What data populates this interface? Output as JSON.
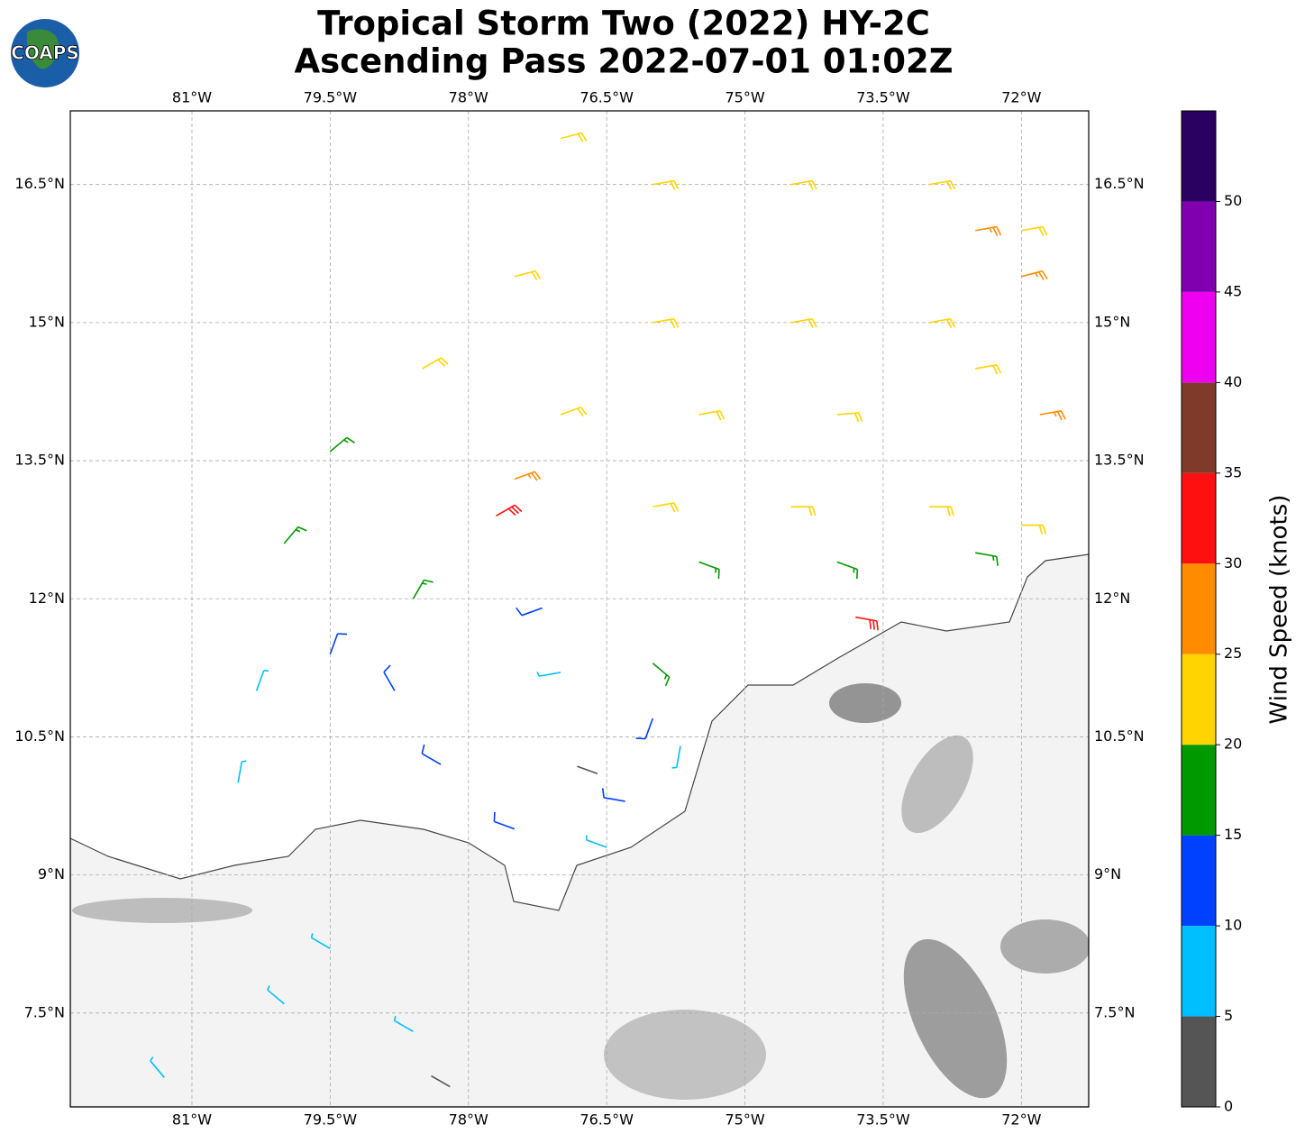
{
  "logo": "COAPS",
  "chart_data": {
    "type": "barbs",
    "title": "Tropical Storm Two (2022) HY-2C",
    "subtitle": "Ascending Pass 2022-07-01 01:02Z",
    "xlim": [
      -82.32,
      -71.27
    ],
    "ylim": [
      6.48,
      17.3
    ],
    "grid": true,
    "xticks": [
      {
        "value": -81,
        "label": "81°W"
      },
      {
        "value": -79.5,
        "label": "79.5°W"
      },
      {
        "value": -78,
        "label": "78°W"
      },
      {
        "value": -76.5,
        "label": "76.5°W"
      },
      {
        "value": -75,
        "label": "75°W"
      },
      {
        "value": -73.5,
        "label": "73.5°W"
      },
      {
        "value": -72,
        "label": "72°W"
      }
    ],
    "yticks": [
      {
        "value": 16.5,
        "label": "16.5°N"
      },
      {
        "value": 15,
        "label": "15°N"
      },
      {
        "value": 13.5,
        "label": "13.5°N"
      },
      {
        "value": 12,
        "label": "12°N"
      },
      {
        "value": 10.5,
        "label": "10.5°N"
      },
      {
        "value": 9,
        "label": "9°N"
      },
      {
        "value": 7.5,
        "label": "7.5°N"
      }
    ],
    "barbs": {
      "lon": [
        -76,
        -74.5,
        -73,
        -77.5,
        -76,
        -74.5,
        -73,
        -78.5,
        -77,
        -75.5,
        -74,
        -72.5,
        -76,
        -74.5,
        -73,
        -72,
        -77,
        -72,
        -72,
        -71.8,
        -77.5,
        -72.5,
        -77.7,
        -73.8,
        -79.5,
        -80,
        -75.5,
        -74,
        -76,
        -72.5,
        -78.6,
        -79.5,
        -78.8,
        -78.3,
        -77.5,
        -76.3,
        -77.2,
        -76,
        -80.3,
        -80.5,
        -77,
        -75.7,
        -76.5,
        -79.5,
        -80,
        -78.6,
        -81.3,
        -76.6,
        -78.2
      ],
      "lat": [
        16.5,
        16.5,
        16.5,
        15.5,
        15,
        15,
        15,
        14.5,
        14,
        14,
        14,
        14.5,
        13,
        13,
        13,
        12.8,
        17,
        16,
        15.5,
        14,
        13.3,
        16,
        12.9,
        11.8,
        13.6,
        12.6,
        12.4,
        12.4,
        11.3,
        12.5,
        12,
        11.4,
        11,
        10.2,
        9.5,
        9.8,
        11.9,
        10.7,
        11,
        10,
        11.2,
        10.4,
        9.3,
        8.2,
        7.6,
        7.3,
        6.8,
        10.1,
        6.7
      ],
      "speed": [
        22,
        22,
        23,
        22,
        22,
        23,
        22,
        21,
        22,
        22,
        23,
        22,
        22,
        22,
        22,
        22,
        21,
        23,
        27,
        26,
        26,
        27,
        31,
        31,
        17,
        17,
        17,
        17,
        16,
        16,
        17,
        12,
        12,
        12,
        12,
        11,
        12,
        11,
        8,
        7,
        7,
        7,
        7,
        8,
        8,
        7,
        7,
        4,
        4
      ],
      "direction": [
        80,
        80,
        80,
        75,
        80,
        80,
        80,
        60,
        70,
        80,
        85,
        80,
        80,
        90,
        90,
        90,
        75,
        80,
        75,
        80,
        70,
        80,
        60,
        100,
        50,
        40,
        110,
        110,
        130,
        100,
        30,
        20,
        330,
        300,
        290,
        280,
        250,
        200,
        20,
        10,
        260,
        190,
        290,
        300,
        310,
        300,
        320,
        290,
        300
      ]
    },
    "colorbar": {
      "label": "Wind Speed (knots)",
      "clim": [
        0,
        55
      ],
      "colors": [
        "#555555",
        "#00bfff",
        "#0040ff",
        "#009900",
        "#ffd400",
        "#ff8c00",
        "#ff1010",
        "#7f3a2a",
        "#f000f0",
        "#8000b0",
        "#2a0060"
      ],
      "ticks": [
        0,
        5,
        10,
        15,
        20,
        25,
        30,
        35,
        40,
        45,
        50
      ]
    }
  }
}
